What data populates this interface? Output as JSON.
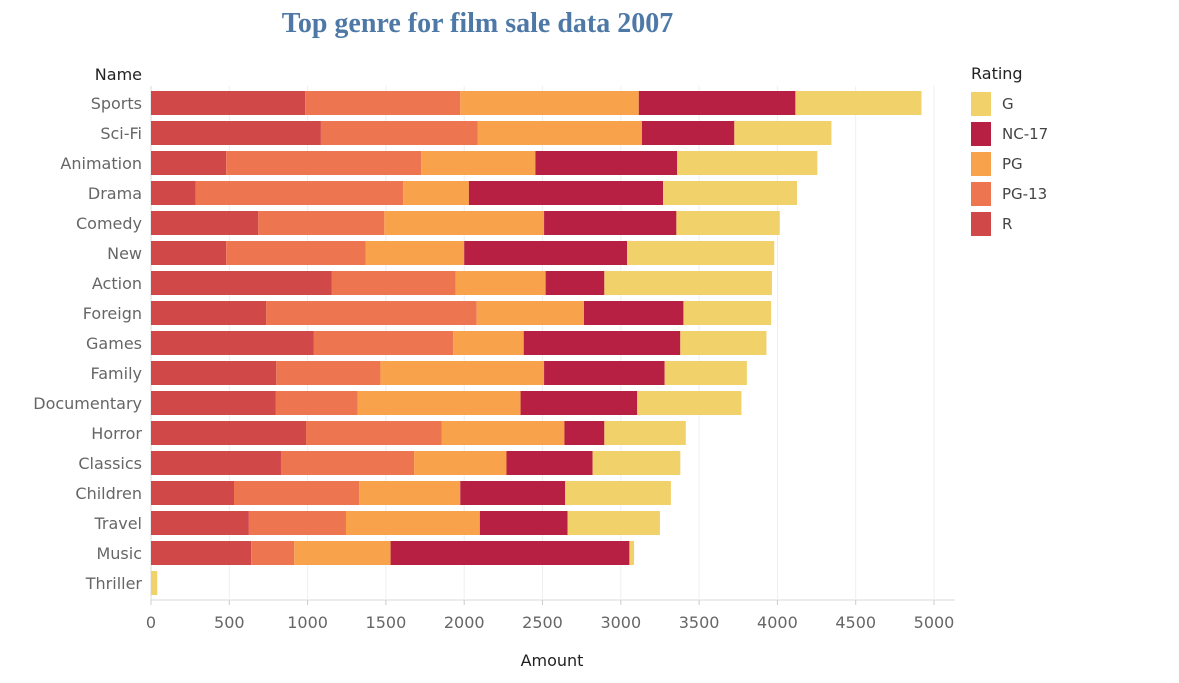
{
  "chart_data": {
    "type": "bar",
    "orientation": "horizontal",
    "stacked": true,
    "title": "Top genre for film sale data 2007",
    "xlabel": "Amount",
    "ylabel": "Name",
    "xlim": [
      0,
      5000
    ],
    "xticks": [
      0,
      500,
      1000,
      1500,
      2000,
      2500,
      3000,
      3500,
      4000,
      4500,
      5000
    ],
    "grid": "vertical",
    "legend_title": "Rating",
    "legend_position": "right",
    "categories": [
      "Sports",
      "Sci-Fi",
      "Animation",
      "Drama",
      "Comedy",
      "New",
      "Action",
      "Foreign",
      "Games",
      "Family",
      "Documentary",
      "Horror",
      "Classics",
      "Children",
      "Travel",
      "Music",
      "Thriller"
    ],
    "stack_order": [
      "R",
      "PG-13",
      "PG",
      "NC-17",
      "G"
    ],
    "series": [
      {
        "name": "G",
        "color": "#f1d16a",
        "values": [
          805,
          620,
          895,
          855,
          660,
          940,
          1070,
          560,
          550,
          525,
          665,
          520,
          560,
          675,
          590,
          30,
          40
        ]
      },
      {
        "name": "NC-17",
        "color": "#b71f43",
        "values": [
          1000,
          590,
          905,
          1240,
          845,
          1040,
          375,
          635,
          1000,
          770,
          745,
          255,
          550,
          670,
          560,
          1525,
          0
        ]
      },
      {
        "name": "PG",
        "color": "#f9a24c",
        "values": [
          1140,
          1050,
          730,
          420,
          1020,
          630,
          575,
          685,
          450,
          1045,
          1040,
          785,
          590,
          645,
          855,
          615,
          0
        ]
      },
      {
        "name": "PG-13",
        "color": "#ed7550",
        "values": [
          990,
          1000,
          1245,
          1325,
          805,
          890,
          790,
          1345,
          890,
          665,
          525,
          865,
          850,
          800,
          620,
          275,
          0
        ]
      },
      {
        "name": "R",
        "color": "#d14848",
        "values": [
          985,
          1085,
          480,
          285,
          685,
          480,
          1155,
          735,
          1040,
          800,
          795,
          990,
          830,
          530,
          625,
          640,
          0
        ]
      }
    ]
  }
}
